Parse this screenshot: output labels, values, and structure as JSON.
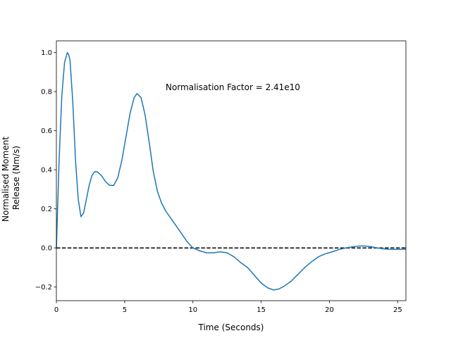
{
  "chart_data": {
    "type": "line",
    "title": "",
    "xlabel": "Time (Seconds)",
    "ylabel_lines": [
      "Normalised Moment",
      "Release (Nm/s)"
    ],
    "xlim": [
      0,
      25.6
    ],
    "ylim": [
      -0.27,
      1.06
    ],
    "xticks": [
      0,
      5,
      10,
      15,
      20,
      25
    ],
    "xtick_labels": [
      "0",
      "5",
      "10",
      "15",
      "20",
      "25"
    ],
    "yticks": [
      -0.2,
      0.0,
      0.2,
      0.4,
      0.6,
      0.8,
      1.0
    ],
    "ytick_labels": [
      "−0.2",
      "0.0",
      "0.2",
      "0.4",
      "0.6",
      "0.8",
      "1.0"
    ],
    "grid": false,
    "legend": "none",
    "annotation": {
      "text": "Normalisation Factor = 2.41e10",
      "x": 8.0,
      "y": 0.8
    },
    "reference_line": {
      "y": 0.0,
      "style": "dashed",
      "color": "#000000"
    },
    "series": [
      {
        "color": "#1f77b4",
        "x": [
          0.0,
          0.2,
          0.4,
          0.6,
          0.8,
          0.9,
          1.0,
          1.2,
          1.4,
          1.6,
          1.8,
          2.0,
          2.2,
          2.4,
          2.6,
          2.8,
          3.0,
          3.3,
          3.6,
          3.9,
          4.2,
          4.5,
          4.8,
          5.1,
          5.4,
          5.7,
          5.9,
          6.2,
          6.5,
          6.8,
          7.1,
          7.4,
          7.7,
          8.0,
          8.4,
          8.8,
          9.2,
          9.6,
          10.0,
          10.5,
          11.0,
          11.5,
          12.0,
          12.5,
          13.0,
          13.5,
          14.0,
          14.5,
          15.0,
          15.5,
          15.9,
          16.3,
          16.7,
          17.2,
          17.7,
          18.2,
          18.7,
          19.2,
          19.7,
          20.2,
          20.7,
          21.2,
          21.7,
          22.2,
          22.6,
          23.0,
          23.5,
          24.0,
          24.5,
          25.0,
          25.6
        ],
        "y": [
          0.0,
          0.45,
          0.78,
          0.95,
          1.0,
          0.99,
          0.96,
          0.75,
          0.45,
          0.25,
          0.16,
          0.18,
          0.25,
          0.32,
          0.37,
          0.39,
          0.39,
          0.37,
          0.34,
          0.32,
          0.32,
          0.36,
          0.45,
          0.57,
          0.69,
          0.77,
          0.79,
          0.77,
          0.68,
          0.54,
          0.39,
          0.29,
          0.23,
          0.19,
          0.15,
          0.11,
          0.07,
          0.03,
          0.0,
          -0.015,
          -0.025,
          -0.025,
          -0.02,
          -0.025,
          -0.045,
          -0.075,
          -0.1,
          -0.14,
          -0.18,
          -0.205,
          -0.215,
          -0.21,
          -0.195,
          -0.17,
          -0.135,
          -0.1,
          -0.07,
          -0.045,
          -0.03,
          -0.02,
          -0.008,
          0.0,
          0.006,
          0.01,
          0.01,
          0.007,
          0.0,
          -0.005,
          -0.008,
          -0.008,
          -0.007
        ]
      }
    ]
  }
}
